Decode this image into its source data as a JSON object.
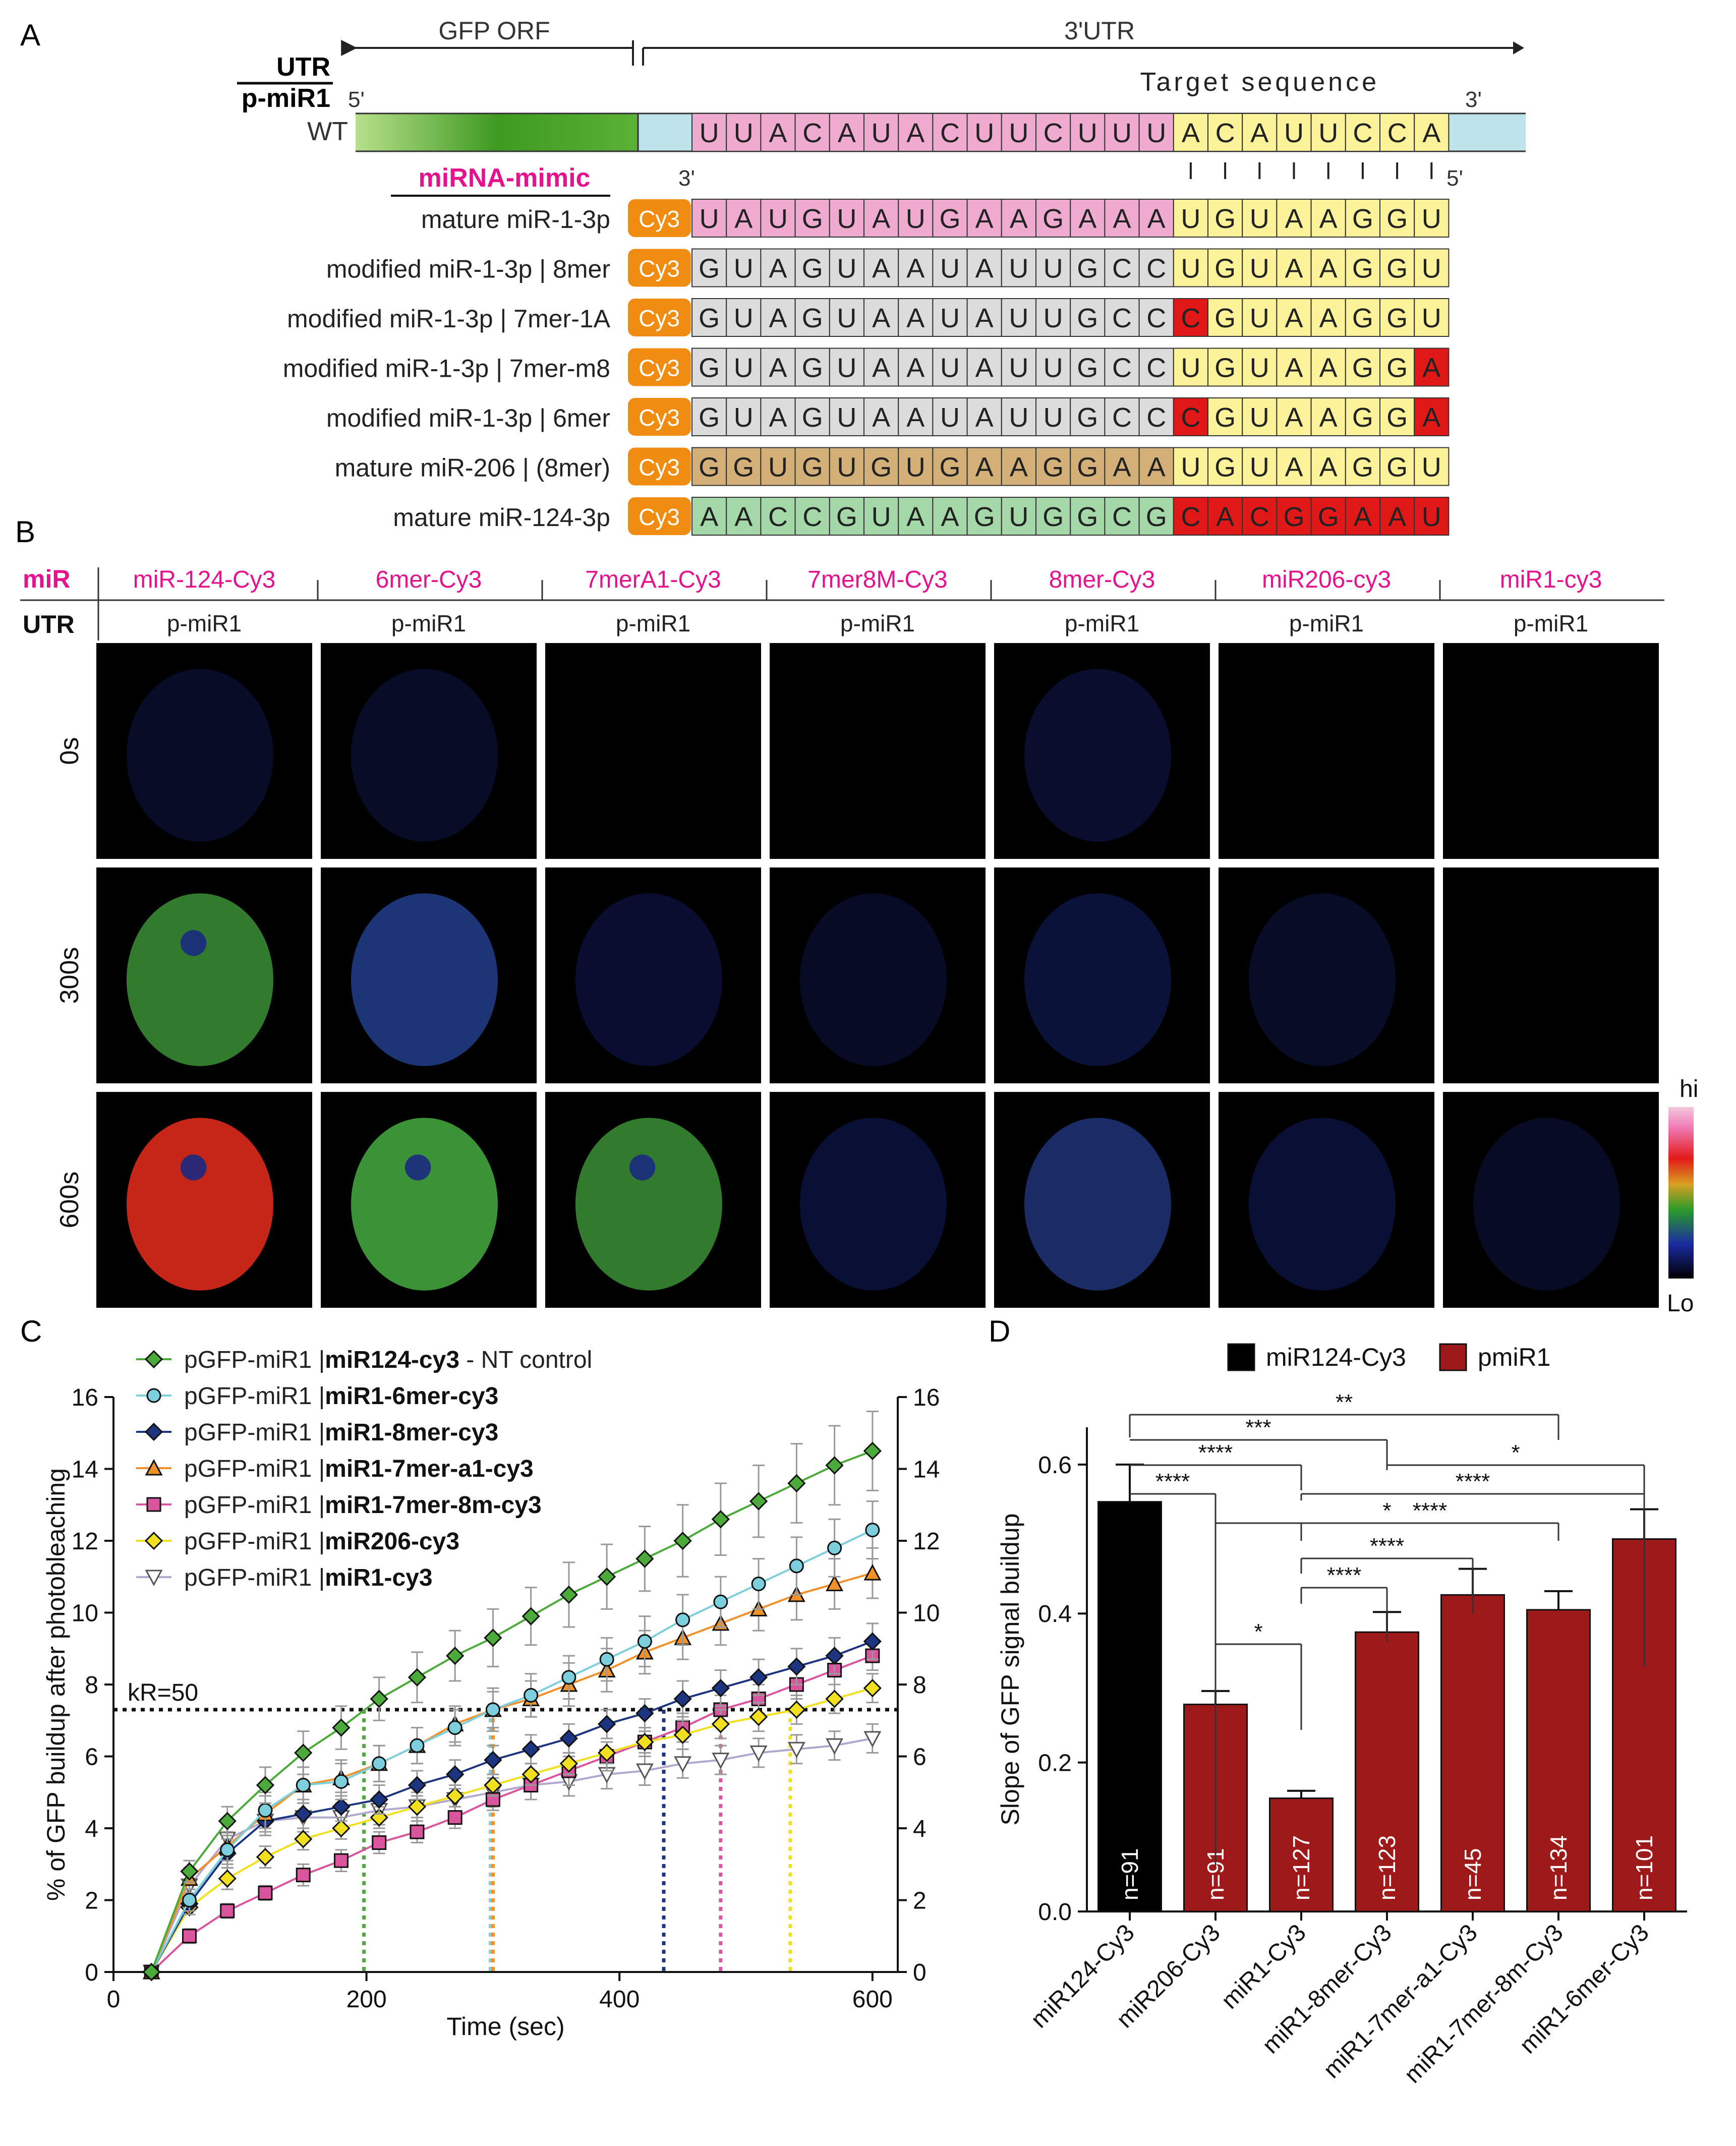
{
  "panelA": {
    "letter": "A",
    "gfp_orf": "GFP ORF",
    "utr3": "3'UTR",
    "utr_label": "UTR",
    "pmir_label": "p-miR1",
    "wt_label": "WT",
    "five_prime": "5'",
    "three_prime": "3'",
    "target_sequence": "Target sequence",
    "mimic_header": "miRNA-mimic",
    "mimic_three": "3'",
    "mimic_five": "5'",
    "cy3": "Cy3",
    "wt_seq": [
      "U",
      "U",
      "A",
      "C",
      "A",
      "U",
      "A",
      "C",
      "U",
      "U",
      "C",
      "U",
      "U",
      "U",
      "A",
      "C",
      "A",
      "U",
      "U",
      "C",
      "C",
      "A"
    ],
    "rows": [
      {
        "label": "mature miR-1-3p",
        "seq": [
          "U",
          "A",
          "U",
          "G",
          "U",
          "A",
          "U",
          "G",
          "A",
          "A",
          "G",
          "A",
          "A",
          "A",
          "U",
          "G",
          "U",
          "A",
          "A",
          "G",
          "G",
          "U"
        ]
      },
      {
        "label": "modified miR-1-3p | 8mer",
        "seq": [
          "G",
          "U",
          "A",
          "G",
          "U",
          "A",
          "A",
          "U",
          "A",
          "U",
          "U",
          "G",
          "C",
          "C",
          "U",
          "G",
          "U",
          "A",
          "A",
          "G",
          "G",
          "U"
        ]
      },
      {
        "label": "modified miR-1-3p | 7mer-1A",
        "seq": [
          "G",
          "U",
          "A",
          "G",
          "U",
          "A",
          "A",
          "U",
          "A",
          "U",
          "U",
          "G",
          "C",
          "C",
          "C",
          "G",
          "U",
          "A",
          "A",
          "G",
          "G",
          "U"
        ]
      },
      {
        "label": "modified miR-1-3p | 7mer-m8",
        "seq": [
          "G",
          "U",
          "A",
          "G",
          "U",
          "A",
          "A",
          "U",
          "A",
          "U",
          "U",
          "G",
          "C",
          "C",
          "U",
          "G",
          "U",
          "A",
          "A",
          "G",
          "G",
          "A"
        ]
      },
      {
        "label": "modified miR-1-3p | 6mer",
        "seq": [
          "G",
          "U",
          "A",
          "G",
          "U",
          "A",
          "A",
          "U",
          "A",
          "U",
          "U",
          "G",
          "C",
          "C",
          "C",
          "G",
          "U",
          "A",
          "A",
          "G",
          "G",
          "A"
        ]
      },
      {
        "label": "mature miR-206 | (8mer)",
        "seq": [
          "G",
          "G",
          "U",
          "G",
          "U",
          "G",
          "U",
          "G",
          "A",
          "A",
          "G",
          "G",
          "A",
          "A",
          "U",
          "G",
          "U",
          "A",
          "A",
          "G",
          "G",
          "U"
        ]
      },
      {
        "label": "mature miR-124-3p",
        "seq": [
          "A",
          "A",
          "C",
          "C",
          "G",
          "U",
          "A",
          "A",
          "G",
          "U",
          "G",
          "G",
          "C",
          "G",
          "C",
          "A",
          "C",
          "G",
          "G",
          "A",
          "A",
          "U"
        ]
      }
    ]
  },
  "panelB": {
    "letter": "B",
    "mir_header": "miR",
    "utr_header": "UTR",
    "columns": [
      "miR-124-Cy3",
      "6mer-Cy3",
      "7merA1-Cy3",
      "7mer8M-Cy3",
      "8mer-Cy3",
      "miR206-cy3",
      "miR1-cy3"
    ],
    "utr_value": "p-miR1",
    "times": [
      "0s",
      "300s",
      "600s"
    ],
    "colorbar_hi": "hi",
    "colorbar_lo": "Lo"
  },
  "colors": {
    "magenta": "#e4138c",
    "pink": "#efabcf",
    "gray": "#dcdcdc",
    "tan": "#d2b078",
    "mint": "#a5d8a8",
    "yellow": "#fbf29a",
    "red": "#e01818",
    "cy3": "#f18c13",
    "lightblue": "#bfe3ea",
    "green": "#58a832",
    "darkred": "#9e1a1a"
  },
  "chart_data": [
    {
      "type": "line",
      "panel": "C",
      "xlabel": "Time (sec)",
      "ylabel": "% of GFP buildup after photobleaching",
      "xlim": [
        0,
        620
      ],
      "ylim": [
        0,
        16
      ],
      "xticks": [
        0,
        200,
        400,
        600
      ],
      "yticks": [
        0,
        2,
        4,
        6,
        8,
        10,
        12,
        14,
        16
      ],
      "threshold": {
        "label": "kR=50",
        "y": 7.3
      },
      "x": [
        30,
        60,
        90,
        120,
        150,
        180,
        210,
        240,
        270,
        300,
        330,
        360,
        390,
        420,
        450,
        480,
        510,
        540,
        570,
        600
      ],
      "series": [
        {
          "name_plain": "pGFP-miR1 |",
          "name_bold": "miR124-cy3",
          "name_suffix": " - NT control",
          "color": "#4caa3a",
          "marker": "diamond",
          "fill": "#4caa3a",
          "crossing": 198,
          "values": [
            0,
            2.8,
            4.2,
            5.2,
            6.1,
            6.8,
            7.6,
            8.2,
            8.8,
            9.3,
            9.9,
            10.5,
            11.0,
            11.5,
            12.0,
            12.6,
            13.1,
            13.6,
            14.1,
            14.5
          ],
          "errors": [
            0,
            0.3,
            0.4,
            0.5,
            0.6,
            0.6,
            0.6,
            0.7,
            0.7,
            0.8,
            0.8,
            0.9,
            0.9,
            0.9,
            1.0,
            1.0,
            1.0,
            1.1,
            1.1,
            1.1
          ]
        },
        {
          "name_plain": "pGFP-miR1 |",
          "name_bold": "miR1-6mer-cy3",
          "name_suffix": "",
          "color": "#7ecfdd",
          "marker": "circle",
          "fill": "#7ecfdd",
          "crossing": 298,
          "values": [
            0,
            2.0,
            3.4,
            4.5,
            5.2,
            5.3,
            5.8,
            6.3,
            6.8,
            7.3,
            7.7,
            8.2,
            8.7,
            9.2,
            9.8,
            10.3,
            10.8,
            11.3,
            11.8,
            12.3
          ],
          "errors": [
            0,
            0.3,
            0.4,
            0.5,
            0.5,
            0.5,
            0.5,
            0.5,
            0.5,
            0.6,
            0.6,
            0.6,
            0.6,
            0.7,
            0.7,
            0.7,
            0.7,
            0.8,
            0.8,
            0.8
          ]
        },
        {
          "name_plain": "pGFP-miR1 |",
          "name_bold": "miR1-8mer-cy3",
          "name_suffix": "",
          "color": "#1d3580",
          "marker": "diamond",
          "fill": "#1d3580",
          "crossing": 435,
          "values": [
            0,
            1.9,
            3.3,
            4.2,
            4.4,
            4.6,
            4.8,
            5.2,
            5.5,
            5.9,
            6.2,
            6.5,
            6.9,
            7.2,
            7.6,
            7.9,
            8.2,
            8.5,
            8.8,
            9.2
          ],
          "errors": [
            0,
            0.3,
            0.4,
            0.4,
            0.4,
            0.4,
            0.4,
            0.4,
            0.4,
            0.4,
            0.4,
            0.4,
            0.4,
            0.4,
            0.5,
            0.5,
            0.5,
            0.5,
            0.5,
            0.5
          ]
        },
        {
          "name_plain": "pGFP-miR1 |",
          "name_bold": "miR1-7mer-a1-cy3",
          "name_suffix": "",
          "color": "#f0912a",
          "marker": "triangle",
          "fill": "#f0912a",
          "crossing": 300,
          "values": [
            0,
            2.6,
            3.5,
            4.4,
            5.2,
            5.4,
            5.8,
            6.3,
            6.9,
            7.3,
            7.6,
            8.0,
            8.4,
            8.9,
            9.3,
            9.7,
            10.1,
            10.5,
            10.8,
            11.1
          ],
          "errors": [
            0,
            0.3,
            0.4,
            0.5,
            0.5,
            0.5,
            0.5,
            0.5,
            0.5,
            0.5,
            0.5,
            0.6,
            0.6,
            0.6,
            0.6,
            0.6,
            0.6,
            0.7,
            0.7,
            0.7
          ]
        },
        {
          "name_plain": "pGFP-miR1 |",
          "name_bold": "miR1-7mer-8m-cy3",
          "name_suffix": "",
          "color": "#d9559d",
          "marker": "square",
          "fill": "#d9559d",
          "crossing": 480,
          "values": [
            0,
            1.0,
            1.7,
            2.2,
            2.7,
            3.1,
            3.6,
            3.9,
            4.3,
            4.8,
            5.2,
            5.6,
            6.0,
            6.4,
            6.8,
            7.3,
            7.6,
            8.0,
            8.4,
            8.8
          ],
          "errors": [
            0,
            0.2,
            0.2,
            0.2,
            0.3,
            0.3,
            0.3,
            0.3,
            0.3,
            0.3,
            0.4,
            0.4,
            0.4,
            0.4,
            0.4,
            0.4,
            0.4,
            0.4,
            0.4,
            0.4
          ]
        },
        {
          "name_plain": "pGFP-miR1 |",
          "name_bold": "miR206-cy3",
          "name_suffix": "",
          "color": "#f0e020",
          "marker": "diamond",
          "fill": "#f0e020",
          "crossing": 535,
          "values": [
            0,
            1.8,
            2.6,
            3.2,
            3.7,
            4.0,
            4.3,
            4.6,
            4.9,
            5.2,
            5.5,
            5.8,
            6.1,
            6.4,
            6.6,
            6.9,
            7.1,
            7.3,
            7.6,
            7.9
          ],
          "errors": [
            0,
            0.2,
            0.3,
            0.3,
            0.3,
            0.3,
            0.3,
            0.3,
            0.3,
            0.3,
            0.3,
            0.3,
            0.3,
            0.3,
            0.4,
            0.4,
            0.4,
            0.4,
            0.4,
            0.4
          ]
        },
        {
          "name_plain": "pGFP-miR1 |",
          "name_bold": "miR1-cy3",
          "name_suffix": "",
          "color": "#b0a8cf",
          "marker": "triangle-down",
          "fill": "#ffffff",
          "crossing": null,
          "values": [
            0,
            2.4,
            3.7,
            4.2,
            4.3,
            4.3,
            4.5,
            4.6,
            4.8,
            5.0,
            5.2,
            5.3,
            5.5,
            5.6,
            5.8,
            5.9,
            6.1,
            6.2,
            6.3,
            6.5
          ],
          "errors": [
            0,
            0.3,
            0.4,
            0.4,
            0.4,
            0.4,
            0.4,
            0.4,
            0.4,
            0.4,
            0.4,
            0.4,
            0.4,
            0.4,
            0.4,
            0.4,
            0.4,
            0.4,
            0.4,
            0.4
          ]
        }
      ]
    },
    {
      "type": "bar",
      "panel": "D",
      "ylabel": "Slope of GFP signal buildup",
      "ylim": [
        0,
        0.65
      ],
      "yticks": [
        0.0,
        0.2,
        0.4,
        0.6
      ],
      "legend": [
        {
          "label": "miR124-Cy3",
          "color": "#000000"
        },
        {
          "label": "pmiR1",
          "color": "#9e1a1a"
        }
      ],
      "categories": [
        "miR124-Cy3",
        "miR206-Cy3",
        "miR1-Cy3",
        "miR1-8mer-Cy3",
        "miR1-7mer-a1-Cy3",
        "miR1-7mer-8m-Cy3",
        "miR1-6mer-Cy3"
      ],
      "values": [
        0.55,
        0.278,
        0.152,
        0.375,
        0.425,
        0.405,
        0.5
      ],
      "errors": [
        0.05,
        0.018,
        0.01,
        0.027,
        0.035,
        0.025,
        0.04
      ],
      "n_labels": [
        "n=91",
        "n=91",
        "n=127",
        "n=123",
        "n=45",
        "n=134",
        "n=101"
      ],
      "bar_colors": [
        "#000000",
        "#9e1a1a",
        "#9e1a1a",
        "#9e1a1a",
        "#9e1a1a",
        "#9e1a1a",
        "#9e1a1a"
      ],
      "significance": [
        {
          "from": 0,
          "to": 5,
          "label": "**"
        },
        {
          "from": 0,
          "to": 3,
          "label": "***"
        },
        {
          "from": 0,
          "to": 2,
          "label": "****"
        },
        {
          "from": 0,
          "to": 1,
          "label": "****"
        },
        {
          "from": 3,
          "to": 6,
          "label": "*"
        },
        {
          "from": 2,
          "to": 6,
          "label": "****"
        },
        {
          "from": 1,
          "to": 5,
          "label": "*"
        },
        {
          "from": 2,
          "to": 5,
          "label": "****"
        },
        {
          "from": 2,
          "to": 4,
          "label": "****"
        },
        {
          "from": 2,
          "to": 3,
          "label": "****"
        },
        {
          "from": 1,
          "to": 2,
          "label": "*"
        }
      ]
    }
  ]
}
